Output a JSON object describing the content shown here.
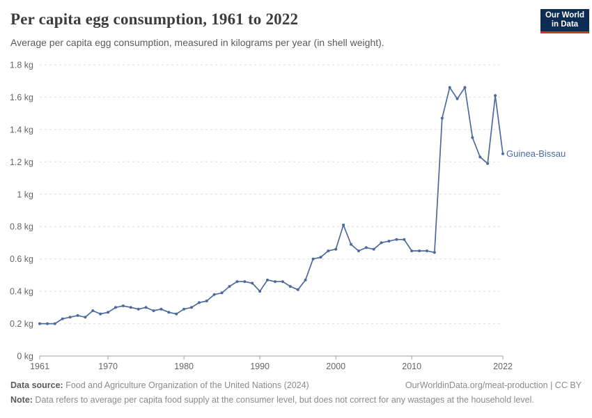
{
  "header": {
    "title": "Per capita egg consumption, 1961 to 2022",
    "subtitle": "Average per capita egg consumption, measured in kilograms per year (in shell weight).",
    "logo": {
      "line1": "Our World",
      "line2": "in Data",
      "bg_color": "#0d2c54",
      "bar_color": "#cf3426"
    }
  },
  "chart_data": {
    "type": "line",
    "title": "Per capita egg consumption, 1961 to 2022",
    "xlabel": "",
    "ylabel": "",
    "unit": "kg",
    "xlim": [
      1961,
      2022
    ],
    "ylim": [
      0,
      1.8
    ],
    "grid": "horizontal-dashed",
    "legend_position": "end-of-line-label",
    "x_ticks": [
      1961,
      1970,
      1980,
      1990,
      2000,
      2010,
      2022
    ],
    "y_ticks": [
      0,
      0.2,
      0.4,
      0.6,
      0.8,
      1,
      1.2,
      1.4,
      1.6,
      1.8
    ],
    "y_tick_labels": [
      "0 kg",
      "0.2 kg",
      "0.4 kg",
      "0.6 kg",
      "0.8 kg",
      "1 kg",
      "1.2 kg",
      "1.4 kg",
      "1.6 kg",
      "1.8 kg"
    ],
    "colors": {
      "line": "#4c6a9c",
      "grid": "#dcdcdc",
      "axis": "#a0a0a0",
      "tick_text": "#666666"
    },
    "series": [
      {
        "name": "Guinea-Bissau",
        "color": "#4c6a9c",
        "x": [
          1961,
          1962,
          1963,
          1964,
          1965,
          1966,
          1967,
          1968,
          1969,
          1970,
          1971,
          1972,
          1973,
          1974,
          1975,
          1976,
          1977,
          1978,
          1979,
          1980,
          1981,
          1982,
          1983,
          1984,
          1985,
          1986,
          1987,
          1988,
          1989,
          1990,
          1991,
          1992,
          1993,
          1994,
          1995,
          1996,
          1997,
          1998,
          1999,
          2000,
          2001,
          2002,
          2003,
          2004,
          2005,
          2006,
          2007,
          2008,
          2009,
          2010,
          2011,
          2012,
          2013,
          2014,
          2015,
          2016,
          2017,
          2018,
          2019,
          2020,
          2021,
          2022
        ],
        "values": [
          0.2,
          0.2,
          0.2,
          0.23,
          0.24,
          0.25,
          0.24,
          0.28,
          0.26,
          0.27,
          0.3,
          0.31,
          0.3,
          0.29,
          0.3,
          0.28,
          0.29,
          0.27,
          0.26,
          0.29,
          0.3,
          0.33,
          0.34,
          0.38,
          0.39,
          0.43,
          0.46,
          0.46,
          0.45,
          0.4,
          0.47,
          0.46,
          0.46,
          0.43,
          0.41,
          0.47,
          0.6,
          0.61,
          0.65,
          0.66,
          0.81,
          0.69,
          0.65,
          0.67,
          0.66,
          0.7,
          0.71,
          0.72,
          0.72,
          0.65,
          0.65,
          0.65,
          0.64,
          1.47,
          1.66,
          1.59,
          1.66,
          1.35,
          1.23,
          1.19,
          1.61,
          1.25
        ]
      }
    ],
    "end_label": "Guinea-Bissau"
  },
  "footer": {
    "source_label": "Data source:",
    "source_text": " Food and Agriculture Organization of the United Nations (2024)",
    "link_text": "OurWorldinData.org/meat-production | CC BY",
    "note_label": "Note:",
    "note_text": " Data refers to average per capita food supply at the consumer level, but does not correct for any wastages at the household level."
  }
}
